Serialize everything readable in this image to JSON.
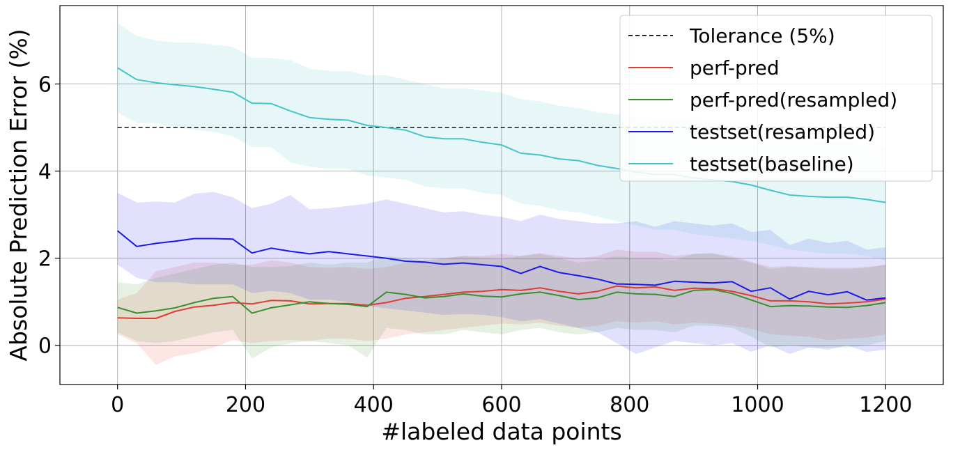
{
  "chart_data": {
    "type": "line",
    "title": "",
    "xlabel": "#labeled data points",
    "ylabel": "Absolute Prediction Error (%)",
    "xlim": [
      -90,
      1290
    ],
    "ylim": [
      -0.9,
      7.8
    ],
    "xticks": [
      0,
      200,
      400,
      600,
      800,
      1000,
      1200
    ],
    "yticks": [
      0,
      2,
      4,
      6
    ],
    "grid": true,
    "legend_position": "top-right",
    "x": [
      0,
      30,
      60,
      90,
      120,
      150,
      180,
      210,
      240,
      270,
      300,
      330,
      360,
      390,
      420,
      450,
      480,
      510,
      540,
      570,
      600,
      630,
      660,
      690,
      720,
      750,
      780,
      810,
      840,
      870,
      900,
      930,
      960,
      990,
      1020,
      1050,
      1080,
      1110,
      1140,
      1170,
      1200
    ],
    "reference_lines": [
      {
        "name": "Tolerance (5%)",
        "color": "#222222",
        "dash": "dashed",
        "y": 5,
        "x_range": [
          0,
          1200
        ]
      }
    ],
    "series": [
      {
        "name": "perf-pred",
        "color": "#e03c31",
        "values": [
          0.63,
          0.62,
          0.62,
          0.78,
          0.88,
          0.92,
          0.98,
          0.95,
          1.03,
          1.02,
          0.95,
          0.96,
          0.96,
          0.92,
          0.98,
          1.08,
          1.12,
          1.17,
          1.22,
          1.24,
          1.28,
          1.26,
          1.32,
          1.24,
          1.18,
          1.24,
          1.36,
          1.32,
          1.34,
          1.26,
          1.31,
          1.3,
          1.24,
          1.14,
          1.02,
          1.02,
          1.0,
          0.95,
          0.97,
          1.0,
          1.06
        ],
        "lower": [
          0.25,
          0.05,
          -0.45,
          -0.25,
          -0.18,
          -0.05,
          0.12,
          0.05,
          0.1,
          0.12,
          0.1,
          0.15,
          0.15,
          0.1,
          0.15,
          0.25,
          0.3,
          0.35,
          0.4,
          0.45,
          0.5,
          0.48,
          0.52,
          0.45,
          0.4,
          0.45,
          0.55,
          0.52,
          0.55,
          0.48,
          0.52,
          0.5,
          0.45,
          0.38,
          0.25,
          0.22,
          0.2,
          0.12,
          0.15,
          0.18,
          0.25
        ],
        "upper": [
          1.05,
          1.2,
          1.7,
          1.8,
          1.9,
          1.9,
          1.85,
          1.85,
          1.95,
          1.9,
          1.8,
          1.78,
          1.8,
          1.75,
          1.8,
          1.9,
          1.95,
          2.0,
          2.05,
          2.05,
          2.1,
          2.05,
          2.12,
          2.05,
          2.0,
          2.05,
          2.2,
          2.15,
          2.15,
          2.05,
          2.1,
          2.1,
          2.05,
          1.92,
          1.8,
          1.82,
          1.8,
          1.78,
          1.78,
          1.8,
          1.85
        ]
      },
      {
        "name": "perf-pred(resampled)",
        "color": "#3a8f2e",
        "values": [
          0.87,
          0.74,
          0.79,
          0.86,
          0.98,
          1.08,
          1.12,
          0.74,
          0.86,
          0.93,
          1.0,
          0.96,
          0.94,
          0.89,
          1.22,
          1.17,
          1.09,
          1.12,
          1.18,
          1.13,
          1.11,
          1.18,
          1.22,
          1.14,
          1.05,
          1.09,
          1.22,
          1.18,
          1.17,
          1.12,
          1.26,
          1.28,
          1.19,
          1.04,
          0.89,
          0.91,
          0.9,
          0.88,
          0.87,
          0.91,
          0.98
        ],
        "lower": [
          0.3,
          0.1,
          0.05,
          0.1,
          0.2,
          0.3,
          0.35,
          -0.3,
          -0.05,
          0.05,
          0.1,
          0.05,
          0.0,
          -0.28,
          0.4,
          0.35,
          0.25,
          0.25,
          0.35,
          0.3,
          0.25,
          0.35,
          0.4,
          0.3,
          0.25,
          0.3,
          0.4,
          0.35,
          0.35,
          0.3,
          0.45,
          0.45,
          0.4,
          0.2,
          -0.05,
          0.0,
          -0.05,
          -0.05,
          -0.05,
          0.0,
          0.1
        ],
        "upper": [
          1.45,
          1.4,
          1.55,
          1.65,
          1.75,
          1.85,
          1.9,
          1.8,
          1.8,
          1.82,
          1.9,
          1.85,
          1.9,
          1.9,
          2.05,
          2.0,
          1.95,
          2.0,
          2.05,
          2.0,
          1.98,
          2.05,
          2.1,
          2.0,
          1.9,
          1.95,
          2.05,
          2.0,
          2.0,
          1.95,
          2.1,
          2.12,
          2.0,
          1.9,
          1.75,
          1.8,
          1.78,
          1.75,
          1.75,
          1.78,
          1.85
        ]
      },
      {
        "name": "testset(resampled)",
        "color": "#1a1aee",
        "values": [
          2.63,
          2.27,
          2.34,
          2.39,
          2.45,
          2.45,
          2.44,
          2.12,
          2.23,
          2.16,
          2.1,
          2.15,
          2.1,
          2.05,
          2.0,
          1.93,
          1.91,
          1.86,
          1.89,
          1.85,
          1.81,
          1.65,
          1.81,
          1.67,
          1.6,
          1.52,
          1.41,
          1.4,
          1.38,
          1.47,
          1.45,
          1.43,
          1.46,
          1.24,
          1.32,
          1.06,
          1.24,
          1.16,
          1.23,
          1.04,
          1.09
        ],
        "lower": [
          1.85,
          1.55,
          1.45,
          1.45,
          1.4,
          1.4,
          1.4,
          1.2,
          1.25,
          1.2,
          1.05,
          1.05,
          1.0,
          0.9,
          0.85,
          0.8,
          0.75,
          0.7,
          0.72,
          0.7,
          0.65,
          0.55,
          0.6,
          0.5,
          0.4,
          0.3,
          0.05,
          -0.2,
          -0.05,
          0.1,
          0.05,
          0.0,
          0.05,
          -0.15,
          0.0,
          -0.2,
          -0.05,
          -0.1,
          0.0,
          -0.15,
          -0.1
        ],
        "upper": [
          3.5,
          3.28,
          3.3,
          3.28,
          3.48,
          3.52,
          3.4,
          3.15,
          3.25,
          3.45,
          3.12,
          3.15,
          3.2,
          3.25,
          3.35,
          3.25,
          3.15,
          3.05,
          3.08,
          3.0,
          2.95,
          2.85,
          3.0,
          2.9,
          2.85,
          2.8,
          2.8,
          2.85,
          2.72,
          2.85,
          2.8,
          2.75,
          2.8,
          2.6,
          2.65,
          2.3,
          2.45,
          2.35,
          2.4,
          2.2,
          2.25
        ]
      },
      {
        "name": "testset(baseline)",
        "color": "#45c4c9",
        "values": [
          6.37,
          6.1,
          6.03,
          5.98,
          5.94,
          5.88,
          5.81,
          5.56,
          5.55,
          5.38,
          5.23,
          5.19,
          5.17,
          5.05,
          5.0,
          4.94,
          4.79,
          4.74,
          4.74,
          4.66,
          4.6,
          4.41,
          4.37,
          4.28,
          4.24,
          4.13,
          4.06,
          3.98,
          3.92,
          3.92,
          3.84,
          3.8,
          3.76,
          3.68,
          3.56,
          3.45,
          3.42,
          3.4,
          3.4,
          3.35,
          3.28
        ],
        "lower": [
          5.35,
          5.1,
          5.1,
          5.0,
          4.95,
          4.9,
          4.8,
          4.55,
          4.55,
          4.2,
          4.1,
          4.05,
          4.05,
          3.9,
          3.85,
          3.8,
          3.65,
          3.6,
          3.6,
          3.5,
          3.45,
          3.25,
          3.2,
          3.1,
          3.05,
          2.95,
          2.85,
          2.75,
          2.65,
          2.65,
          2.55,
          2.5,
          2.45,
          2.4,
          2.3,
          2.2,
          2.15,
          2.1,
          2.1,
          2.05,
          1.95
        ],
        "upper": [
          7.4,
          7.1,
          7.0,
          6.95,
          6.95,
          6.9,
          6.85,
          6.6,
          6.6,
          6.55,
          6.35,
          6.3,
          6.3,
          6.2,
          6.2,
          6.1,
          6.0,
          5.9,
          5.9,
          5.85,
          5.8,
          5.65,
          5.6,
          5.5,
          5.45,
          5.35,
          5.3,
          5.25,
          5.2,
          5.2,
          5.15,
          5.1,
          5.05,
          4.95,
          4.85,
          4.75,
          4.7,
          4.68,
          4.65,
          4.6,
          4.55
        ]
      }
    ]
  }
}
